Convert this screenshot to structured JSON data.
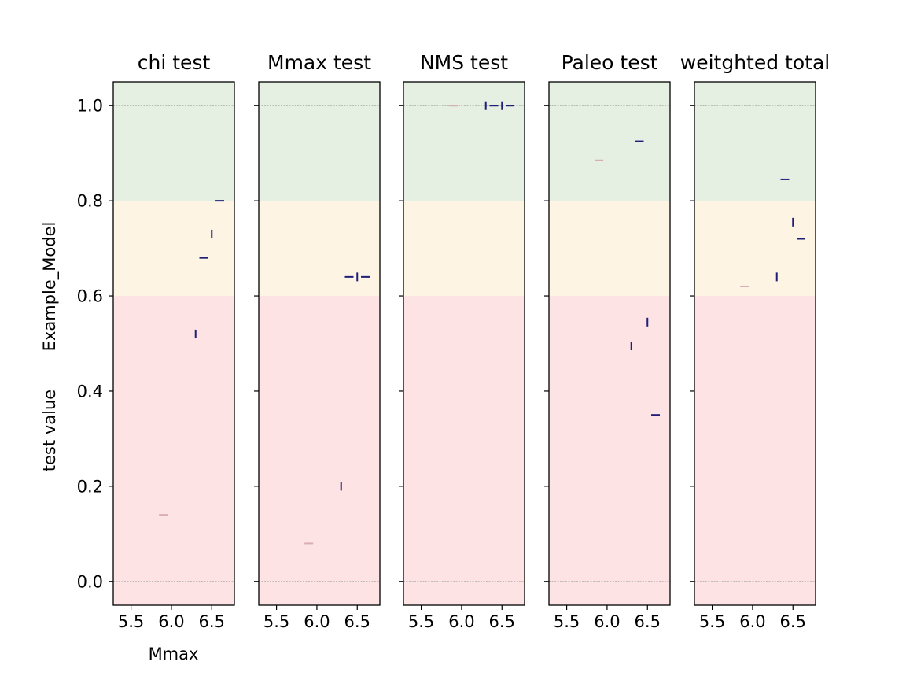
{
  "figure": {
    "ylabel_lines": [
      "Example_Model",
      "test value"
    ],
    "xlabel": "Mmax"
  },
  "colors": {
    "band_good": "#e5f0e3",
    "band_mid": "#fdf4e4",
    "band_bad": "#fde3e4",
    "marker_main": "#1f1f7a",
    "marker_faint": "#d9aeb0",
    "refline": "#a0a0a0"
  },
  "chart_data": [
    {
      "type": "scatter",
      "title": "chi test",
      "xlabel": "Mmax",
      "ylabel": "Example_Model\ntest value",
      "xlim": [
        5.28,
        6.78
      ],
      "ylim": [
        -0.05,
        1.05
      ],
      "xticks": [
        5.5,
        6.0,
        6.5
      ],
      "xtick_labels": [
        "5.5",
        "6.0",
        "6.5"
      ],
      "yticks": [
        0.0,
        0.2,
        0.4,
        0.6,
        0.8,
        1.0
      ],
      "ytick_labels": [
        "0.0",
        "0.2",
        "0.4",
        "0.6",
        "0.8",
        "1.0"
      ],
      "bands": [
        {
          "from": 0.8,
          "to": 1.05,
          "level": "good"
        },
        {
          "from": 0.6,
          "to": 0.8,
          "level": "mid"
        },
        {
          "from": -0.05,
          "to": 0.6,
          "level": "bad"
        }
      ],
      "points": [
        {
          "x": 5.9,
          "y": 0.14,
          "marker": "hline",
          "faint": true
        },
        {
          "x": 6.3,
          "y": 0.52,
          "marker": "vline"
        },
        {
          "x": 6.4,
          "y": 0.68,
          "marker": "hline"
        },
        {
          "x": 6.5,
          "y": 0.73,
          "marker": "vline"
        },
        {
          "x": 6.6,
          "y": 0.8,
          "marker": "hline"
        }
      ]
    },
    {
      "type": "scatter",
      "title": "Mmax test",
      "xlim": [
        5.28,
        6.78
      ],
      "ylim": [
        -0.05,
        1.05
      ],
      "xticks": [
        5.5,
        6.0,
        6.5
      ],
      "xtick_labels": [
        "5.5",
        "6.0",
        "6.5"
      ],
      "bands": [
        {
          "from": 0.8,
          "to": 1.05,
          "level": "good"
        },
        {
          "from": 0.6,
          "to": 0.8,
          "level": "mid"
        },
        {
          "from": -0.05,
          "to": 0.6,
          "level": "bad"
        }
      ],
      "points": [
        {
          "x": 5.9,
          "y": 0.08,
          "marker": "hline",
          "faint": true
        },
        {
          "x": 6.3,
          "y": 0.2,
          "marker": "vline"
        },
        {
          "x": 6.4,
          "y": 0.64,
          "marker": "hline"
        },
        {
          "x": 6.5,
          "y": 0.64,
          "marker": "vline"
        },
        {
          "x": 6.6,
          "y": 0.64,
          "marker": "hline"
        }
      ]
    },
    {
      "type": "scatter",
      "title": "NMS test",
      "xlim": [
        5.28,
        6.78
      ],
      "ylim": [
        -0.05,
        1.05
      ],
      "xticks": [
        5.5,
        6.0,
        6.5
      ],
      "xtick_labels": [
        "5.5",
        "6.0",
        "6.5"
      ],
      "bands": [
        {
          "from": 0.8,
          "to": 1.05,
          "level": "good"
        },
        {
          "from": 0.6,
          "to": 0.8,
          "level": "mid"
        },
        {
          "from": -0.05,
          "to": 0.6,
          "level": "bad"
        }
      ],
      "points": [
        {
          "x": 5.9,
          "y": 1.0,
          "marker": "hline",
          "faint": true
        },
        {
          "x": 6.3,
          "y": 1.0,
          "marker": "vline"
        },
        {
          "x": 6.4,
          "y": 1.0,
          "marker": "hline"
        },
        {
          "x": 6.5,
          "y": 1.0,
          "marker": "vline"
        },
        {
          "x": 6.6,
          "y": 1.0,
          "marker": "hline"
        }
      ]
    },
    {
      "type": "scatter",
      "title": "Paleo test",
      "xlim": [
        5.28,
        6.78
      ],
      "ylim": [
        -0.05,
        1.05
      ],
      "xticks": [
        5.5,
        6.0,
        6.5
      ],
      "xtick_labels": [
        "5.5",
        "6.0",
        "6.5"
      ],
      "bands": [
        {
          "from": 0.8,
          "to": 1.05,
          "level": "good"
        },
        {
          "from": 0.6,
          "to": 0.8,
          "level": "mid"
        },
        {
          "from": -0.05,
          "to": 0.6,
          "level": "bad"
        }
      ],
      "points": [
        {
          "x": 5.9,
          "y": 0.885,
          "marker": "hline",
          "faint": true
        },
        {
          "x": 6.3,
          "y": 0.495,
          "marker": "vline"
        },
        {
          "x": 6.4,
          "y": 0.925,
          "marker": "hline"
        },
        {
          "x": 6.5,
          "y": 0.545,
          "marker": "vline"
        },
        {
          "x": 6.6,
          "y": 0.35,
          "marker": "hline"
        }
      ]
    },
    {
      "type": "scatter",
      "title": "weitghted total",
      "xlim": [
        5.28,
        6.78
      ],
      "ylim": [
        -0.05,
        1.05
      ],
      "xticks": [
        5.5,
        6.0,
        6.5
      ],
      "xtick_labels": [
        "5.5",
        "6.0",
        "6.5"
      ],
      "bands": [
        {
          "from": 0.8,
          "to": 1.05,
          "level": "good"
        },
        {
          "from": 0.6,
          "to": 0.8,
          "level": "mid"
        },
        {
          "from": -0.05,
          "to": 0.6,
          "level": "bad"
        }
      ],
      "points": [
        {
          "x": 5.9,
          "y": 0.62,
          "marker": "hline",
          "faint": true
        },
        {
          "x": 6.3,
          "y": 0.64,
          "marker": "vline"
        },
        {
          "x": 6.4,
          "y": 0.845,
          "marker": "hline"
        },
        {
          "x": 6.5,
          "y": 0.755,
          "marker": "vline"
        },
        {
          "x": 6.6,
          "y": 0.72,
          "marker": "hline"
        }
      ]
    }
  ]
}
